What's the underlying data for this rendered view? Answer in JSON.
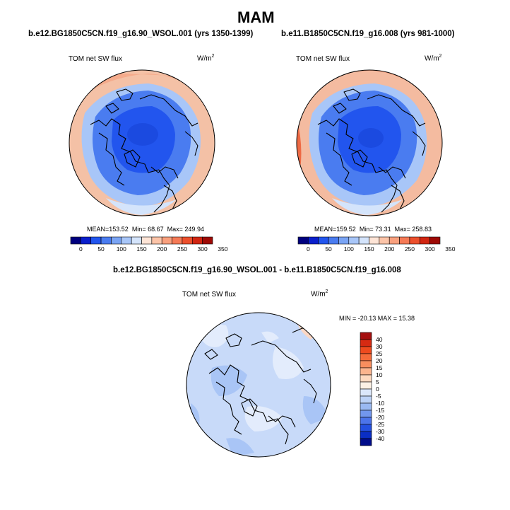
{
  "title": "MAM",
  "panels": [
    {
      "case_title": "b.e12.BG1850C5CN.f19_g16.90_WSOL.001 (yrs 1350-1399)",
      "variable": "TOM net SW flux",
      "units_base": "W/m",
      "units_sup": "2",
      "stats": {
        "mean_label": "MEAN=",
        "mean": "153.52",
        "min_label": "Min=",
        "min": "68.67",
        "max_label": "Max=",
        "max": "249.94"
      },
      "colorbar": {
        "colors": [
          "#00007f",
          "#0a1fcc",
          "#2255ee",
          "#4a7cf0",
          "#7aa4f4",
          "#a8c6f8",
          "#d4e4fb",
          "#fde4d6",
          "#fcc4a8",
          "#f9a07e",
          "#f57a56",
          "#ec4f2c",
          "#d12511",
          "#9e0a05"
        ],
        "labels": [
          "0",
          "50",
          "100",
          "150",
          "200",
          "250",
          "300",
          "350"
        ]
      }
    },
    {
      "case_title": "b.e11.B1850C5CN.f19_g16.008 (yrs 981-1000)",
      "variable": "TOM net SW flux",
      "units_base": "W/m",
      "units_sup": "2",
      "stats": {
        "mean_label": "MEAN=",
        "mean": "159.52",
        "min_label": "Min=",
        "min": "73.31",
        "max_label": "Max=",
        "max": "258.83"
      },
      "colorbar": {
        "colors": [
          "#00007f",
          "#0a1fcc",
          "#2255ee",
          "#4a7cf0",
          "#7aa4f4",
          "#a8c6f8",
          "#d4e4fb",
          "#fde4d6",
          "#fcc4a8",
          "#f9a07e",
          "#f57a56",
          "#ec4f2c",
          "#d12511",
          "#9e0a05"
        ],
        "labels": [
          "0",
          "50",
          "100",
          "150",
          "200",
          "250",
          "300",
          "350"
        ]
      }
    }
  ],
  "difference": {
    "title": "b.e12.BG1850C5CN.f19_g16.90_WSOL.001 - b.e11.B1850C5CN.f19_g16.008",
    "variable": "TOM net SW flux",
    "units_base": "W/m",
    "units_sup": "2",
    "minmax": "MIN = -20.13 MAX =  15.38",
    "colorbar": {
      "colors": [
        "#a50f0f",
        "#d62a12",
        "#ee4a1e",
        "#f56b3a",
        "#f88e5e",
        "#fbb48e",
        "#fdd9c0",
        "#fdf1e4",
        "#dbe7fb",
        "#bcd2f7",
        "#9ab9f2",
        "#7297ee",
        "#4c74ea",
        "#2450e0",
        "#0a2ec4",
        "#000c8a"
      ],
      "labels": [
        "40",
        "30",
        "25",
        "20",
        "15",
        "10",
        "5",
        "0",
        "-5",
        "-10",
        "-15",
        "-20",
        "-25",
        "-30",
        "-40"
      ]
    }
  },
  "colors": {
    "ocean_blue": "#3b74ea",
    "core_blue": "#1d4fe3",
    "light_blue": "#a3c1f5",
    "pale": "#f4d7c7",
    "salmon": "#f5ab8c",
    "diff_base": "#c8daf9",
    "diff_light": "#e3ecfc",
    "diff_mid": "#a9c5f6",
    "diff_warm": "#fbd7c4"
  }
}
